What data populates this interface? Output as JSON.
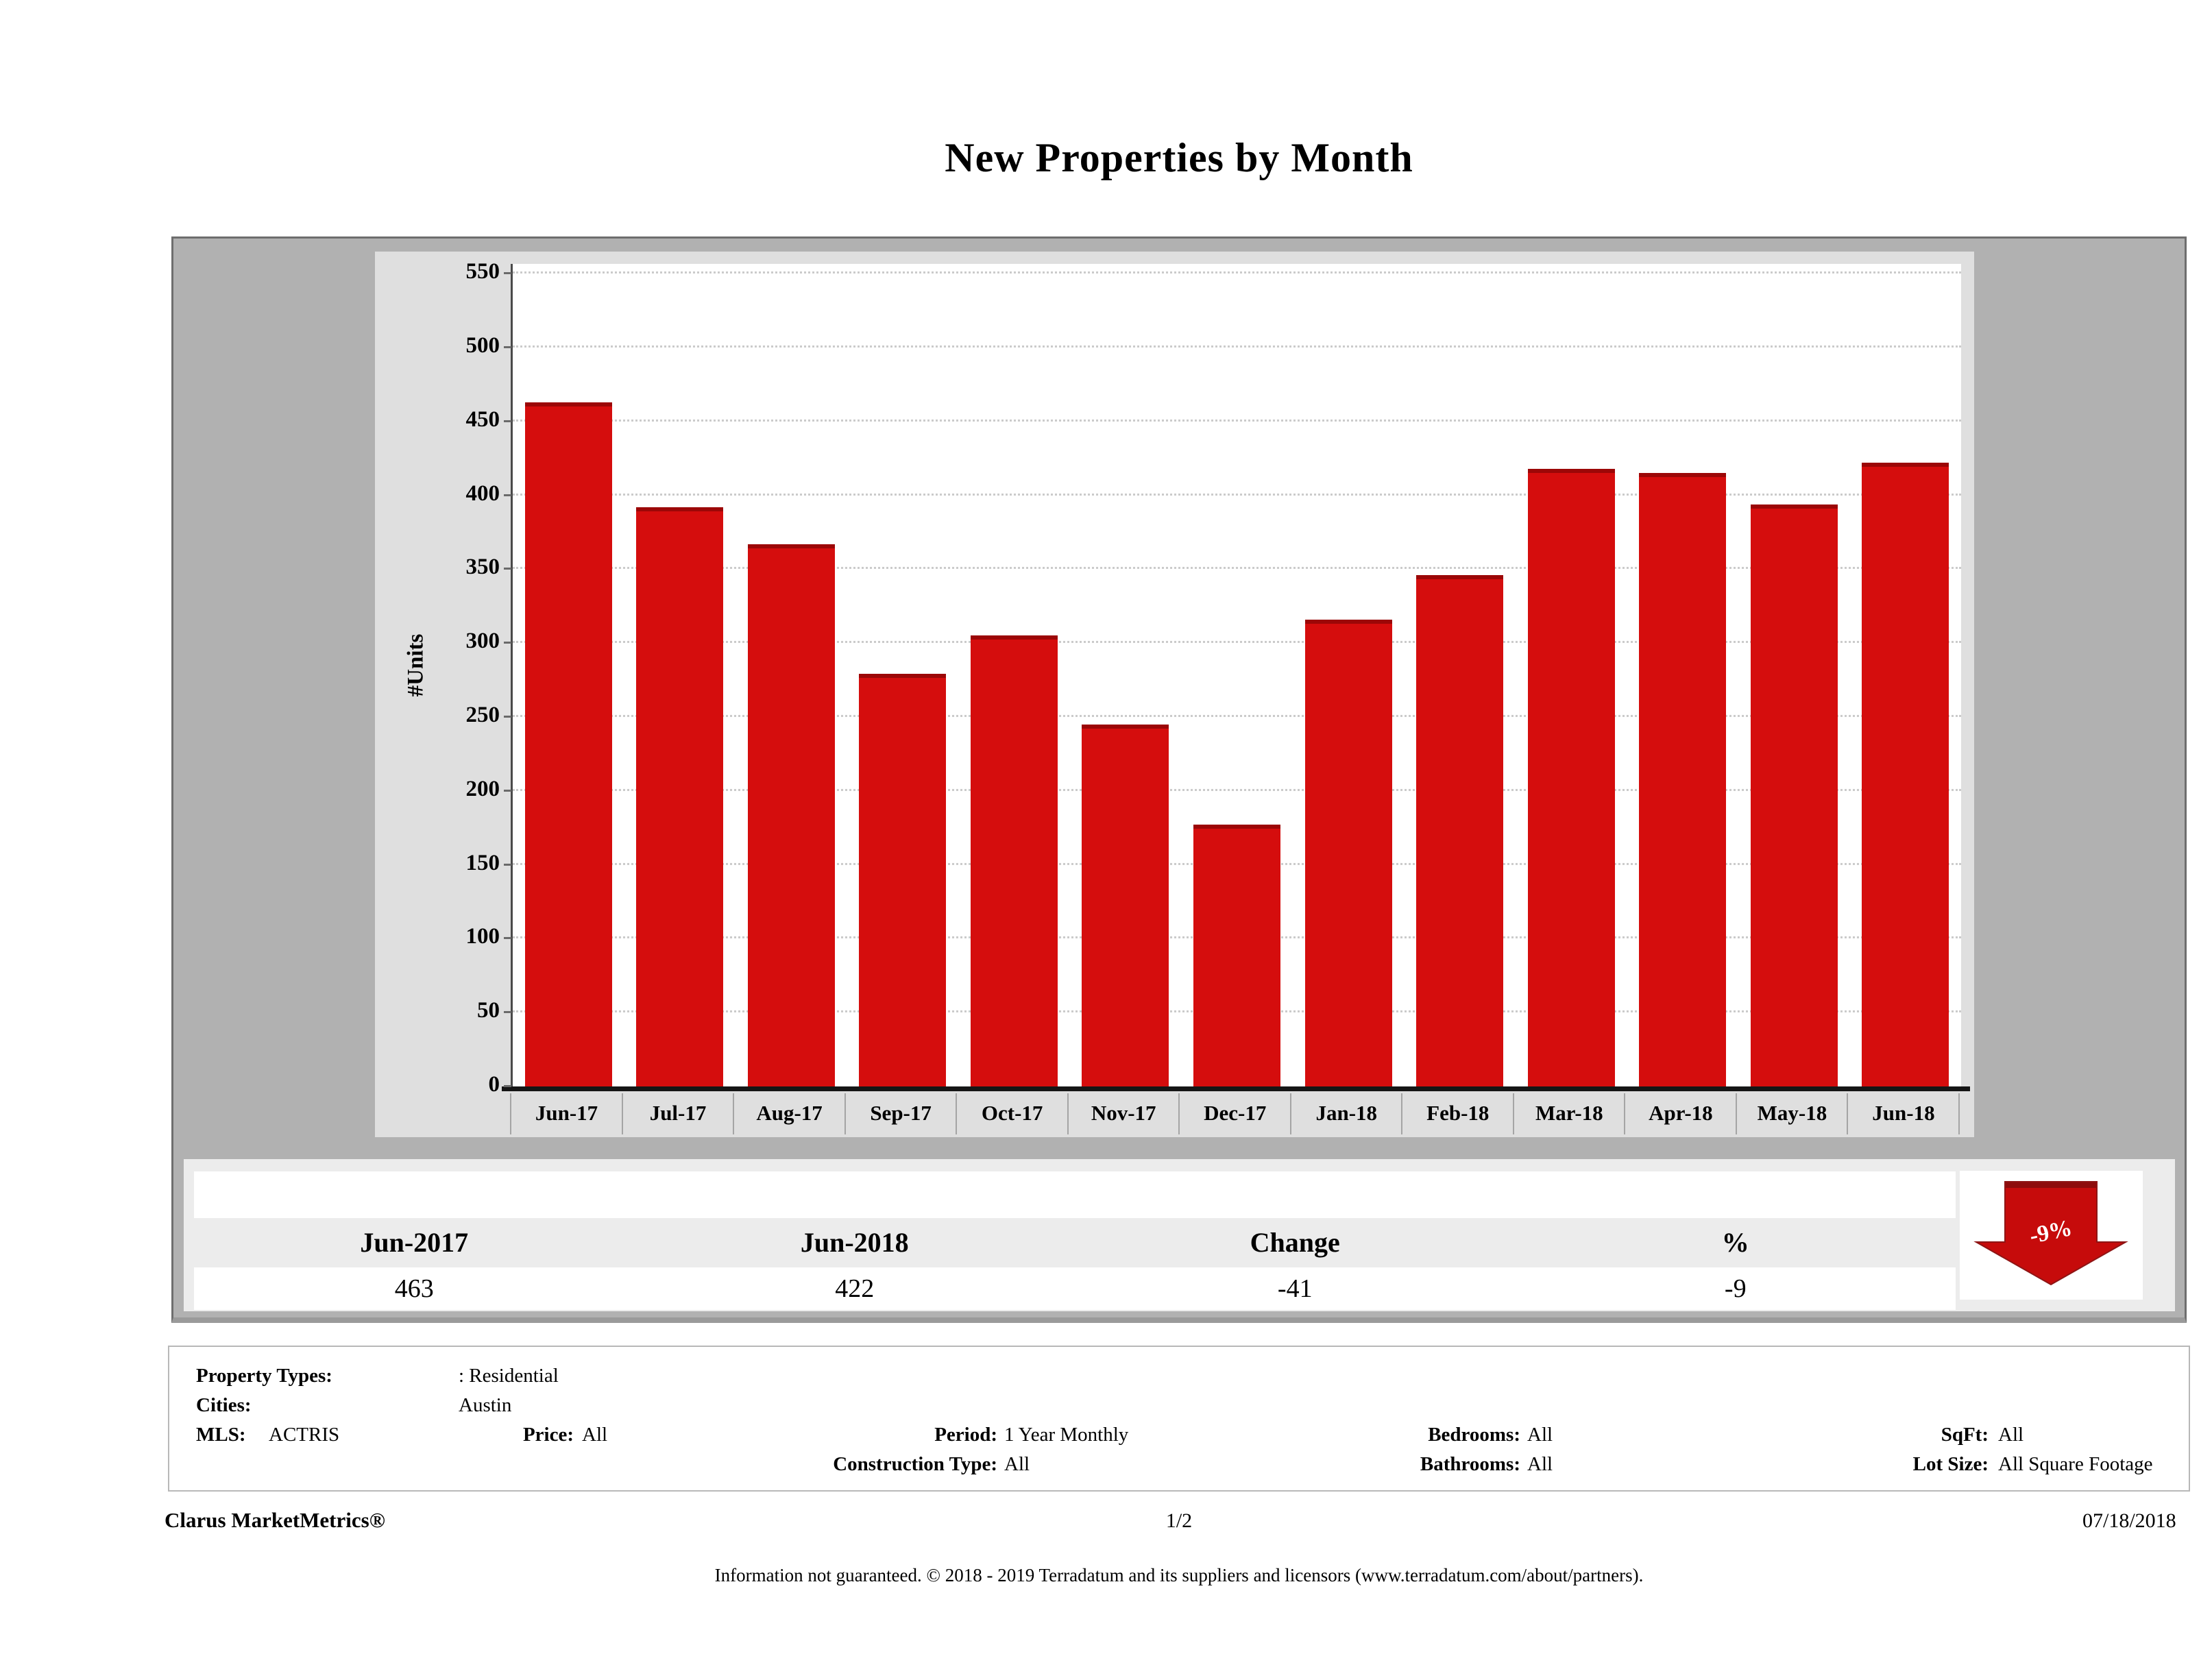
{
  "title": "New Properties by Month",
  "chart_data": {
    "type": "bar",
    "categories": [
      "Jun-17",
      "Jul-17",
      "Aug-17",
      "Sep-17",
      "Oct-17",
      "Nov-17",
      "Dec-17",
      "Jan-18",
      "Feb-18",
      "Mar-18",
      "Apr-18",
      "May-18",
      "Jun-18"
    ],
    "values": [
      463,
      392,
      367,
      279,
      305,
      245,
      177,
      316,
      346,
      418,
      415,
      394,
      422
    ],
    "title": "New Properties by Month",
    "xlabel": "",
    "ylabel": "#Units",
    "ylim": [
      0,
      550
    ],
    "ytick_step": 50,
    "grid": true,
    "legend_position": "none",
    "bar_color": "#d50d0d"
  },
  "summary_table": {
    "headers": [
      "Jun-2017",
      "Jun-2018",
      "Change",
      "%"
    ],
    "values": [
      "463",
      "422",
      "-41",
      "-9"
    ]
  },
  "indicator": {
    "label": "-9%",
    "direction": "down",
    "color": "#c60b0b"
  },
  "parameters": {
    "rows": [
      [
        {
          "label": "Property Types:",
          "value": ": Residential"
        }
      ],
      [
        {
          "label": "Cities:",
          "value": "Austin"
        }
      ],
      [
        {
          "label": "MLS:",
          "value": "ACTRIS"
        },
        {
          "label": "Price:",
          "value": "All"
        },
        {
          "label": "Period:",
          "value": "1 Year Monthly"
        },
        {
          "label": "Bedrooms:",
          "value": "All"
        },
        {
          "label": "SqFt:",
          "value": "All"
        }
      ],
      [
        {
          "label": "Construction Type:",
          "value": "All"
        },
        {
          "label": "Bathrooms:",
          "value": "All"
        },
        {
          "label": "Lot Size:",
          "value": "All Square Footage"
        }
      ]
    ]
  },
  "footer": {
    "brand": "Clarus MarketMetrics®",
    "page": "1/2",
    "date": "07/18/2018",
    "disclaimer": "Information not guaranteed. © 2018 - 2019 Terradatum and its suppliers and licensors (www.terradatum.com/about/partners)."
  },
  "colors": {
    "bar": "#d50d0d",
    "bar_edge": "#9c0707",
    "arrow": "#c60b0b",
    "container_bg": "#b1b1b1",
    "panel_bg": "#dfdfdf",
    "inset_bg": "#ececec"
  }
}
